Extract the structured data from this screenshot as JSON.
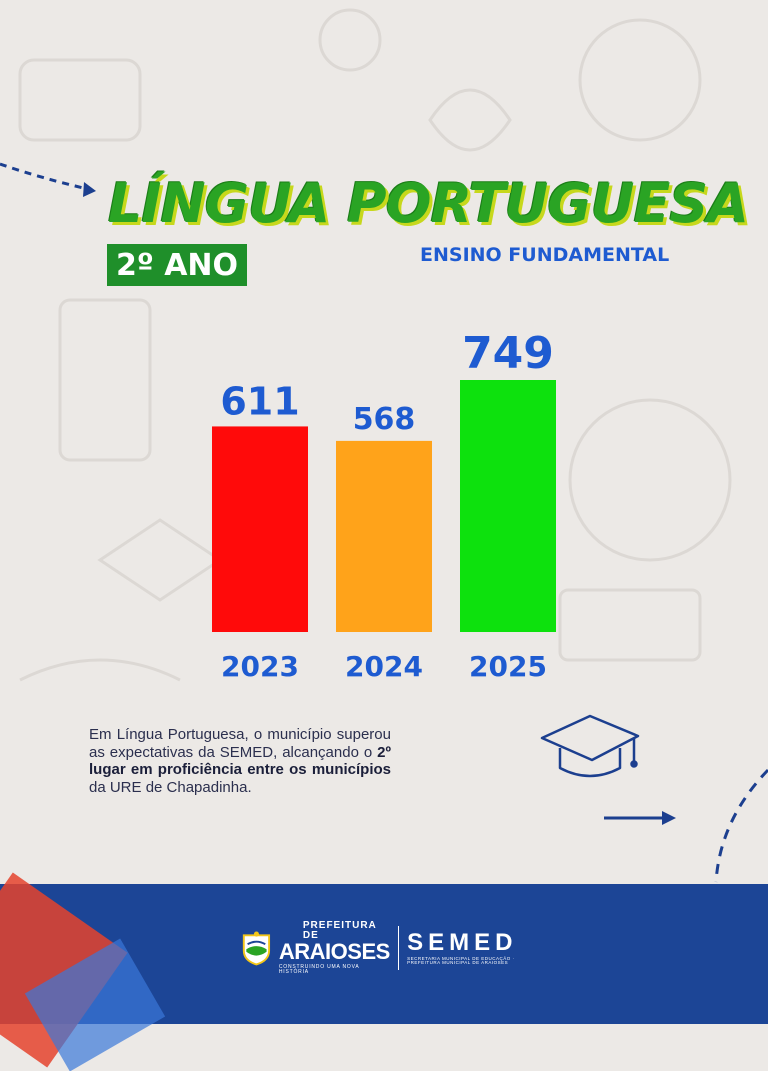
{
  "header": {
    "title": "LÍNGUA PORTUGUESA",
    "grade": "2º ANO",
    "subtitle": "ENSINO FUNDAMENTAL"
  },
  "chart_data": {
    "type": "bar",
    "title": "",
    "xlabel": "",
    "ylabel": "",
    "categories": [
      "2023",
      "2024",
      "2025"
    ],
    "values": [
      611,
      568,
      749
    ],
    "colors": [
      "#ff0a0a",
      "#ffa31a",
      "#0de10d"
    ],
    "label_color": "#1e5bd1",
    "ylim": [
      0,
      749
    ],
    "grid": false,
    "legend": "none"
  },
  "description": {
    "part1": "Em Língua Portuguesa, o município superou as expectativas da SEMED, alcançando o ",
    "bold": "2º lugar em proficiência entre os municípios",
    "part2": " da URE de Chapadinha."
  },
  "footer": {
    "prefeitura_top": "PREFEITURA DE",
    "prefeitura_name": "ARAIOSES",
    "prefeitura_tagline": "CONSTRUINDO UMA NOVA HISTÓRIA",
    "semed_name": "SEMED",
    "semed_sub": "SECRETARIA MUNICIPAL DE EDUCAÇÃO · PREFEITURA MUNICIPAL DE ARAIOSES"
  },
  "icons": [
    "graduation-cap-icon",
    "arrow-right-icon",
    "dashed-arrow-icon",
    "crest-icon"
  ],
  "colors": {
    "background": "#ece9e6",
    "title_green": "#2aa424",
    "badge_green": "#1f8f2a",
    "accent_blue": "#1e5bd1",
    "footer_blue": "#1c4596"
  }
}
